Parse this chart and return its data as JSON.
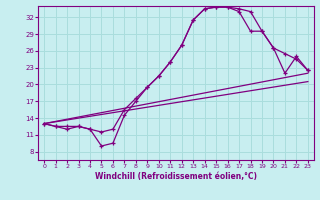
{
  "xlabel": "Windchill (Refroidissement éolien,°C)",
  "bg_color": "#c8eef0",
  "grid_color": "#aadddd",
  "line_color": "#800080",
  "x_ticks": [
    0,
    1,
    2,
    3,
    4,
    5,
    6,
    7,
    8,
    9,
    10,
    11,
    12,
    13,
    14,
    15,
    16,
    17,
    18,
    19,
    20,
    21,
    22,
    23
  ],
  "y_ticks": [
    8,
    11,
    14,
    17,
    20,
    23,
    26,
    29,
    32
  ],
  "xlim": [
    -0.5,
    23.5
  ],
  "ylim": [
    6.5,
    34
  ],
  "line1_x": [
    0,
    1,
    2,
    3,
    4,
    5,
    6,
    7,
    8,
    9,
    10,
    11,
    12,
    13,
    14,
    15,
    16,
    17,
    18,
    19,
    20,
    21,
    22,
    23
  ],
  "line1_y": [
    13.0,
    12.5,
    12.0,
    12.5,
    12.0,
    9.0,
    9.5,
    14.5,
    17.0,
    19.5,
    21.5,
    24.0,
    27.0,
    31.5,
    33.5,
    33.8,
    33.8,
    33.5,
    33.0,
    29.5,
    26.5,
    25.5,
    24.5,
    22.5
  ],
  "line2_x": [
    0,
    1,
    2,
    3,
    4,
    5,
    6,
    7,
    8,
    9,
    10,
    11,
    12,
    13,
    14,
    15,
    16,
    17,
    18,
    19,
    20,
    21,
    22,
    23
  ],
  "line2_y": [
    13.0,
    12.5,
    12.5,
    12.5,
    12.0,
    11.5,
    12.0,
    15.5,
    17.5,
    19.5,
    21.5,
    24.0,
    27.0,
    31.5,
    33.5,
    33.8,
    33.8,
    33.0,
    29.5,
    29.5,
    26.5,
    22.0,
    25.0,
    22.5
  ],
  "line3_x": [
    0,
    23
  ],
  "line3_y": [
    13.0,
    22.0
  ],
  "line4_x": [
    0,
    23
  ],
  "line4_y": [
    13.0,
    20.5
  ]
}
